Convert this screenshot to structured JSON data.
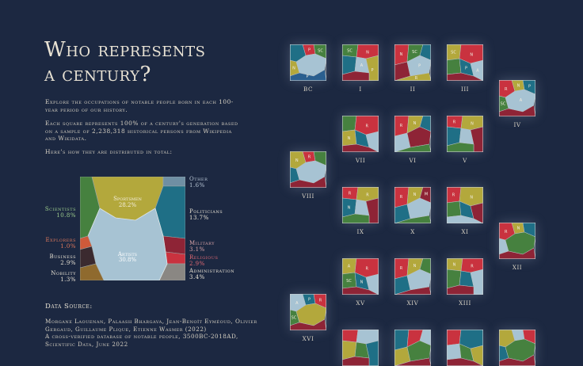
{
  "title": [
    "Who represents",
    "a century?"
  ],
  "intro": [
    "Explore the occupations of notable people born in each 100-year period of our history.",
    "Each square represents 100% of a century's generation based on a sample of 2,238,318 historical persons from Wikipedia and Wikidata.",
    "Here's how they are distributed in total:"
  ],
  "categories": [
    {
      "key": "sports",
      "name": "Sportsmen",
      "value": "28.2%",
      "color": "#b3a83c"
    },
    {
      "key": "arts",
      "name": "Artists",
      "value": "30.8%",
      "color": "#a7c3d3"
    },
    {
      "key": "science",
      "name": "Scientists",
      "value": "10.8%",
      "color": "#46813f"
    },
    {
      "key": "other",
      "name": "Other",
      "value": "1.6%",
      "color": "#6f8fa3"
    },
    {
      "key": "politics",
      "name": "Politicians",
      "value": "13.7%",
      "color": "#1f6f86"
    },
    {
      "key": "military",
      "name": "Military",
      "value": "3.1%",
      "color": "#8e2436"
    },
    {
      "key": "religious",
      "name": "Religious",
      "value": "2.9%",
      "color": "#c9323f"
    },
    {
      "key": "admin",
      "name": "Administration",
      "value": "3.4%",
      "color": "#8a8783"
    },
    {
      "key": "explorers",
      "name": "Explorers",
      "value": "1.0%",
      "color": "#cf5a3a"
    },
    {
      "key": "business",
      "name": "Business",
      "value": "2.9%",
      "color": "#3b2a2f"
    },
    {
      "key": "nobility",
      "name": "Nobility",
      "value": "1.3%",
      "color": "#8f6a2e"
    }
  ],
  "inside_labels": {
    "sports": {
      "name": "Sportsmen",
      "value": "28.2%"
    },
    "arts": {
      "name": "Artists",
      "value": "30.8%"
    }
  },
  "source": {
    "heading": "Data Source:",
    "lines": [
      "Morgane Laouenan, Palaash Bhargava, Jean-Benoît Eyméoud, Olivier Gergaud, Guillaume Plique, Etienne Wasmer (2022)",
      "A cross-verified database of notable people, 3500BC-2018AD, Scientific Data, June 2022"
    ]
  },
  "centuries": [
    {
      "label": "BC",
      "palette": [
        "#1f6f86",
        "#c9323f",
        "#46813f",
        "#b3a83c",
        "#a7c3d3",
        "#2a5f8f"
      ],
      "marks": [
        "",
        "P",
        "SC",
        "N",
        "",
        "P"
      ]
    },
    {
      "label": "I",
      "palette": [
        "#46813f",
        "#c9323f",
        "#1f6f86",
        "#a7c3d3",
        "#b3a83c",
        "#8e2436"
      ],
      "marks": [
        "SC",
        "N",
        "",
        "A",
        "P",
        ""
      ]
    },
    {
      "label": "II",
      "palette": [
        "#c9323f",
        "#46813f",
        "#1f6f86",
        "#8e2436",
        "#a7c3d3",
        "#b3a83c"
      ],
      "marks": [
        "N",
        "SC",
        "",
        "",
        "P",
        "R"
      ]
    },
    {
      "label": "III",
      "palette": [
        "#b3a83c",
        "#c9323f",
        "#46813f",
        "#1f6f86",
        "#a7c3d3",
        "#8e2436"
      ],
      "marks": [
        "SC",
        "N",
        "",
        "P",
        "A",
        ""
      ]
    },
    {
      "label": "IV",
      "palette": [
        "#c9323f",
        "#b3a83c",
        "#1f6f86",
        "#46813f",
        "#a7c3d3",
        "#8e2436"
      ],
      "marks": [
        "R",
        "N",
        "P",
        "SC",
        "A",
        ""
      ]
    },
    {
      "label": "V",
      "palette": [
        "#c9323f",
        "#b3a83c",
        "#1f6f86",
        "#a7c3d3",
        "#8e2436",
        "#46813f"
      ],
      "marks": [
        "R",
        "N",
        "",
        "",
        "",
        ""
      ]
    },
    {
      "label": "VI",
      "palette": [
        "#c9323f",
        "#b3a83c",
        "#1f6f86",
        "#a7c3d3",
        "#8e2436",
        "#46813f"
      ],
      "marks": [
        "R",
        "N",
        "",
        "",
        "",
        ""
      ]
    },
    {
      "label": "VII",
      "palette": [
        "#46813f",
        "#c9323f",
        "#b3a83c",
        "#1f6f86",
        "#a7c3d3",
        "#8e2436"
      ],
      "marks": [
        "",
        "R",
        "N",
        "",
        "",
        ""
      ]
    },
    {
      "label": "VIII",
      "palette": [
        "#b3a83c",
        "#c9323f",
        "#46813f",
        "#1f6f86",
        "#a7c3d3",
        "#8e2436"
      ],
      "marks": [
        "N",
        "R",
        "",
        "",
        "",
        ""
      ]
    },
    {
      "label": "IX",
      "palette": [
        "#c9323f",
        "#b3a83c",
        "#1f6f86",
        "#a7c3d3",
        "#8e2436",
        "#46813f"
      ],
      "marks": [
        "R",
        "R",
        "N",
        "",
        "",
        ""
      ]
    },
    {
      "label": "X",
      "palette": [
        "#c9323f",
        "#b3a83c",
        "#8e2436",
        "#1f6f86",
        "#a7c3d3",
        "#46813f"
      ],
      "marks": [
        "R",
        "N",
        "M",
        "",
        "",
        ""
      ]
    },
    {
      "label": "XI",
      "palette": [
        "#c9323f",
        "#b3a83c",
        "#46813f",
        "#1f6f86",
        "#8e2436",
        "#a7c3d3"
      ],
      "marks": [
        "R",
        "N",
        "",
        "",
        "",
        ""
      ]
    },
    {
      "label": "XII",
      "palette": [
        "#c9323f",
        "#b3a83c",
        "#1f6f86",
        "#a7c3d3",
        "#46813f",
        "#8e2436"
      ],
      "marks": [
        "R",
        "N",
        "",
        "",
        "",
        ""
      ]
    },
    {
      "label": "XIII",
      "palette": [
        "#b3a83c",
        "#c9323f",
        "#46813f",
        "#1f6f86",
        "#a7c3d3",
        "#8e2436"
      ],
      "marks": [
        "N",
        "R",
        "",
        "",
        "",
        ""
      ]
    },
    {
      "label": "XIV",
      "palette": [
        "#c9323f",
        "#b3a83c",
        "#46813f",
        "#1f6f86",
        "#a7c3d3",
        "#8e2436"
      ],
      "marks": [
        "R",
        "N",
        "",
        "",
        "",
        ""
      ]
    },
    {
      "label": "XV",
      "palette": [
        "#b3a83c",
        "#c9323f",
        "#46813f",
        "#1f6f86",
        "#a7c3d3",
        "#8e2436"
      ],
      "marks": [
        "A",
        "R",
        "SC",
        "N",
        "",
        ""
      ]
    },
    {
      "label": "XVI",
      "palette": [
        "#a7c3d3",
        "#1f6f86",
        "#c9323f",
        "#46813f",
        "#b3a83c",
        "#8e2436"
      ],
      "marks": [
        "A",
        "P",
        "R",
        "SC",
        "",
        ""
      ]
    },
    {
      "label": "",
      "palette": [
        "#c9323f",
        "#a7c3d3",
        "#b3a83c",
        "#46813f",
        "#1f6f86",
        "#8e2436"
      ],
      "marks": [
        "",
        "",
        "",
        "",
        "",
        ""
      ]
    },
    {
      "label": "",
      "palette": [
        "#1f6f86",
        "#c9323f",
        "#a7c3d3",
        "#b3a83c",
        "#46813f",
        "#8e2436"
      ],
      "marks": [
        "",
        "",
        "",
        "",
        "",
        ""
      ]
    },
    {
      "label": "",
      "palette": [
        "#c9323f",
        "#1f6f86",
        "#a7c3d3",
        "#46813f",
        "#b3a83c",
        "#8e2436"
      ],
      "marks": [
        "",
        "",
        "",
        "",
        "",
        ""
      ]
    },
    {
      "label": "",
      "palette": [
        "#b3a83c",
        "#a7c3d3",
        "#c9323f",
        "#1f6f86",
        "#46813f",
        "#8e2436"
      ],
      "marks": [
        "",
        "",
        "",
        "",
        "",
        ""
      ]
    }
  ]
}
